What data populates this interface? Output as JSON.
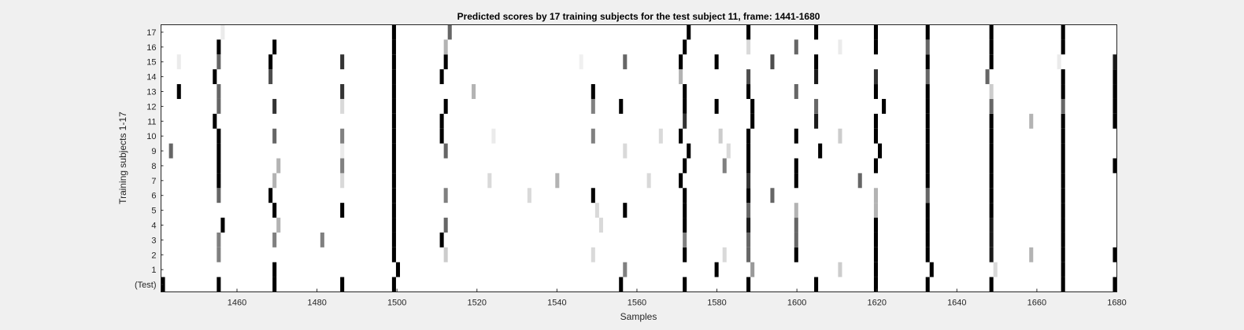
{
  "chart_data": {
    "type": "heatmap",
    "title": "Predicted scores by 17 training subjects for the test subject 11, frame: 1441-1680",
    "xlabel": "Samples",
    "ylabel": "Training subjects 1-17",
    "xlim": [
      1441,
      1680
    ],
    "x_ticks": [
      1460,
      1480,
      1500,
      1520,
      1540,
      1560,
      1580,
      1600,
      1620,
      1640,
      1660,
      1680
    ],
    "y_tick_labels": [
      "(Test)",
      "1",
      "2",
      "3",
      "4",
      "5",
      "6",
      "7",
      "8",
      "9",
      "10",
      "11",
      "12",
      "13",
      "14",
      "15",
      "16",
      "17"
    ],
    "value_range": [
      0,
      1
    ],
    "colormap": "gray-inverted",
    "grid": false,
    "rows": [
      {
        "label": "(Test)",
        "marks": [
          [
            1441,
            1.0
          ],
          [
            1455,
            1.0
          ],
          [
            1469,
            1.0
          ],
          [
            1486,
            1.0
          ],
          [
            1499,
            1.0
          ],
          [
            1556,
            1.0
          ],
          [
            1572,
            1.0
          ],
          [
            1588,
            1.0
          ],
          [
            1605,
            1.0
          ],
          [
            1620,
            1.0
          ],
          [
            1633,
            1.0
          ],
          [
            1649,
            1.0
          ],
          [
            1667,
            1.0
          ],
          [
            1680,
            1.0
          ]
        ]
      },
      {
        "label": "1",
        "marks": [
          [
            1469,
            1.0
          ],
          [
            1500,
            1.0
          ],
          [
            1557,
            0.5
          ],
          [
            1580,
            1.0
          ],
          [
            1589,
            0.4
          ],
          [
            1611,
            0.2
          ],
          [
            1620,
            1.0
          ],
          [
            1634,
            1.0
          ],
          [
            1650,
            0.15
          ],
          [
            1667,
            1.0
          ]
        ]
      },
      {
        "label": "2",
        "marks": [
          [
            1455,
            0.5
          ],
          [
            1499,
            1.0
          ],
          [
            1512,
            0.2
          ],
          [
            1549,
            0.15
          ],
          [
            1572,
            1.0
          ],
          [
            1582,
            0.15
          ],
          [
            1588,
            0.6
          ],
          [
            1600,
            1.0
          ],
          [
            1620,
            1.0
          ],
          [
            1633,
            1.0
          ],
          [
            1649,
            0.9
          ],
          [
            1659,
            0.3
          ],
          [
            1667,
            1.0
          ],
          [
            1680,
            1.0
          ]
        ]
      },
      {
        "label": "3",
        "marks": [
          [
            1455,
            0.5
          ],
          [
            1469,
            0.5
          ],
          [
            1481,
            0.5
          ],
          [
            1499,
            1.0
          ],
          [
            1511,
            1.0
          ],
          [
            1572,
            0.5
          ],
          [
            1588,
            0.6
          ],
          [
            1600,
            0.6
          ],
          [
            1620,
            1.0
          ],
          [
            1633,
            1.0
          ],
          [
            1649,
            0.9
          ],
          [
            1667,
            1.0
          ]
        ]
      },
      {
        "label": "4",
        "marks": [
          [
            1456,
            1.0
          ],
          [
            1470,
            0.3
          ],
          [
            1499,
            1.0
          ],
          [
            1512,
            0.6
          ],
          [
            1551,
            0.15
          ],
          [
            1572,
            1.0
          ],
          [
            1588,
            0.9
          ],
          [
            1600,
            0.6
          ],
          [
            1620,
            1.0
          ],
          [
            1633,
            1.0
          ],
          [
            1649,
            0.9
          ],
          [
            1667,
            1.0
          ]
        ]
      },
      {
        "label": "5",
        "marks": [
          [
            1469,
            1.0
          ],
          [
            1486,
            1.0
          ],
          [
            1499,
            1.0
          ],
          [
            1550,
            0.15
          ],
          [
            1557,
            1.0
          ],
          [
            1572,
            1.0
          ],
          [
            1588,
            0.6
          ],
          [
            1600,
            0.3
          ],
          [
            1620,
            0.3
          ],
          [
            1633,
            1.0
          ],
          [
            1649,
            1.0
          ],
          [
            1667,
            1.0
          ]
        ]
      },
      {
        "label": "6",
        "marks": [
          [
            1455,
            0.6
          ],
          [
            1468,
            1.0
          ],
          [
            1499,
            1.0
          ],
          [
            1512,
            0.5
          ],
          [
            1533,
            0.15
          ],
          [
            1549,
            1.0
          ],
          [
            1572,
            1.0
          ],
          [
            1588,
            1.0
          ],
          [
            1594,
            0.6
          ],
          [
            1620,
            0.3
          ],
          [
            1633,
            0.6
          ],
          [
            1649,
            1.0
          ],
          [
            1667,
            1.0
          ]
        ]
      },
      {
        "label": "7",
        "marks": [
          [
            1455,
            1.0
          ],
          [
            1469,
            0.3
          ],
          [
            1486,
            0.15
          ],
          [
            1499,
            1.0
          ],
          [
            1523,
            0.15
          ],
          [
            1540,
            0.3
          ],
          [
            1563,
            0.15
          ],
          [
            1571,
            1.0
          ],
          [
            1588,
            0.8
          ],
          [
            1600,
            1.0
          ],
          [
            1616,
            0.6
          ],
          [
            1633,
            1.0
          ],
          [
            1649,
            1.0
          ],
          [
            1667,
            1.0
          ]
        ]
      },
      {
        "label": "8",
        "marks": [
          [
            1455,
            1.0
          ],
          [
            1470,
            0.3
          ],
          [
            1486,
            0.5
          ],
          [
            1499,
            1.0
          ],
          [
            1572,
            1.0
          ],
          [
            1582,
            0.5
          ],
          [
            1588,
            1.0
          ],
          [
            1600,
            1.0
          ],
          [
            1620,
            1.0
          ],
          [
            1633,
            1.0
          ],
          [
            1649,
            1.0
          ],
          [
            1667,
            1.0
          ],
          [
            1680,
            1.0
          ]
        ]
      },
      {
        "label": "9",
        "marks": [
          [
            1443,
            0.6
          ],
          [
            1455,
            1.0
          ],
          [
            1486,
            0.08
          ],
          [
            1499,
            1.0
          ],
          [
            1512,
            0.6
          ],
          [
            1557,
            0.15
          ],
          [
            1573,
            1.0
          ],
          [
            1583,
            0.15
          ],
          [
            1588,
            1.0
          ],
          [
            1606,
            1.0
          ],
          [
            1621,
            1.0
          ],
          [
            1633,
            1.0
          ],
          [
            1649,
            1.0
          ],
          [
            1667,
            1.0
          ]
        ]
      },
      {
        "label": "10",
        "marks": [
          [
            1455,
            1.0
          ],
          [
            1469,
            0.6
          ],
          [
            1486,
            0.5
          ],
          [
            1499,
            1.0
          ],
          [
            1511,
            1.0
          ],
          [
            1524,
            0.08
          ],
          [
            1549,
            0.5
          ],
          [
            1566,
            0.15
          ],
          [
            1571,
            1.0
          ],
          [
            1581,
            0.2
          ],
          [
            1588,
            1.0
          ],
          [
            1600,
            1.0
          ],
          [
            1611,
            0.2
          ],
          [
            1620,
            1.0
          ],
          [
            1633,
            1.0
          ],
          [
            1649,
            1.0
          ],
          [
            1667,
            1.0
          ]
        ]
      },
      {
        "label": "11",
        "marks": [
          [
            1454,
            1.0
          ],
          [
            1499,
            1.0
          ],
          [
            1511,
            1.0
          ],
          [
            1572,
            0.8
          ],
          [
            1589,
            1.0
          ],
          [
            1605,
            0.9
          ],
          [
            1620,
            1.0
          ],
          [
            1633,
            1.0
          ],
          [
            1649,
            1.0
          ],
          [
            1659,
            0.3
          ],
          [
            1667,
            1.0
          ],
          [
            1680,
            1.0
          ]
        ]
      },
      {
        "label": "12",
        "marks": [
          [
            1455,
            0.6
          ],
          [
            1469,
            0.8
          ],
          [
            1486,
            0.15
          ],
          [
            1499,
            1.0
          ],
          [
            1512,
            1.0
          ],
          [
            1549,
            0.5
          ],
          [
            1556,
            1.0
          ],
          [
            1572,
            1.0
          ],
          [
            1580,
            1.0
          ],
          [
            1589,
            1.0
          ],
          [
            1605,
            0.6
          ],
          [
            1622,
            1.0
          ],
          [
            1633,
            1.0
          ],
          [
            1649,
            0.6
          ],
          [
            1667,
            0.6
          ],
          [
            1680,
            1.0
          ]
        ]
      },
      {
        "label": "13",
        "marks": [
          [
            1445,
            1.0
          ],
          [
            1455,
            0.6
          ],
          [
            1486,
            0.8
          ],
          [
            1499,
            1.0
          ],
          [
            1519,
            0.3
          ],
          [
            1549,
            1.0
          ],
          [
            1572,
            1.0
          ],
          [
            1588,
            1.0
          ],
          [
            1600,
            0.6
          ],
          [
            1620,
            1.0
          ],
          [
            1633,
            1.0
          ],
          [
            1649,
            0.2
          ],
          [
            1667,
            1.0
          ],
          [
            1680,
            1.0
          ]
        ]
      },
      {
        "label": "14",
        "marks": [
          [
            1454,
            1.0
          ],
          [
            1468,
            0.7
          ],
          [
            1499,
            1.0
          ],
          [
            1511,
            1.0
          ],
          [
            1571,
            0.3
          ],
          [
            1588,
            0.7
          ],
          [
            1605,
            0.9
          ],
          [
            1620,
            0.8
          ],
          [
            1633,
            0.6
          ],
          [
            1648,
            0.6
          ],
          [
            1667,
            1.0
          ],
          [
            1680,
            1.0
          ]
        ]
      },
      {
        "label": "15",
        "marks": [
          [
            1445,
            0.08
          ],
          [
            1455,
            0.6
          ],
          [
            1468,
            1.0
          ],
          [
            1486,
            0.8
          ],
          [
            1499,
            1.0
          ],
          [
            1512,
            1.0
          ],
          [
            1546,
            0.06
          ],
          [
            1557,
            0.6
          ],
          [
            1571,
            1.0
          ],
          [
            1580,
            1.0
          ],
          [
            1594,
            0.7
          ],
          [
            1605,
            1.0
          ],
          [
            1633,
            1.0
          ],
          [
            1649,
            1.0
          ],
          [
            1666,
            0.08
          ],
          [
            1680,
            0.9
          ]
        ]
      },
      {
        "label": "16",
        "marks": [
          [
            1455,
            1.0
          ],
          [
            1469,
            1.0
          ],
          [
            1499,
            1.0
          ],
          [
            1512,
            0.3
          ],
          [
            1572,
            1.0
          ],
          [
            1588,
            0.15
          ],
          [
            1600,
            0.6
          ],
          [
            1611,
            0.08
          ],
          [
            1620,
            1.0
          ],
          [
            1633,
            0.6
          ],
          [
            1649,
            1.0
          ],
          [
            1667,
            1.0
          ]
        ]
      },
      {
        "label": "17",
        "marks": [
          [
            1456,
            0.08
          ],
          [
            1499,
            1.0
          ],
          [
            1513,
            0.6
          ],
          [
            1573,
            1.0
          ],
          [
            1588,
            1.0
          ],
          [
            1605,
            1.0
          ],
          [
            1620,
            1.0
          ],
          [
            1633,
            1.0
          ],
          [
            1649,
            1.0
          ],
          [
            1667,
            1.0
          ]
        ]
      }
    ]
  }
}
